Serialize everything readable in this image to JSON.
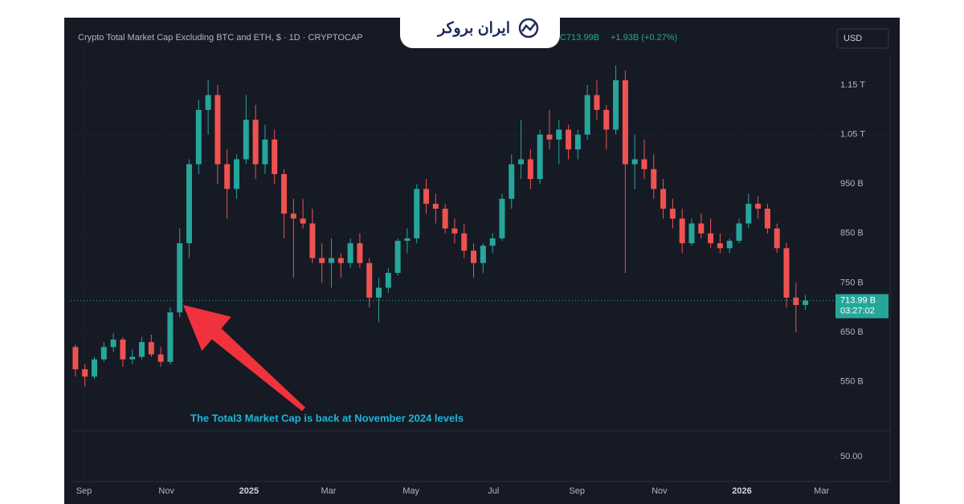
{
  "brand": "ایران بروکر",
  "chart_data": {
    "type": "candlestick",
    "title": "Crypto Total Market Cap Excluding BTC and ETH, $ · 1D · CRYPTOCAP",
    "last_quote": "C713.99B",
    "change": "+1.93B (+0.27%)",
    "currency": "USD",
    "countdown": "03:27:02",
    "annotation": "The Total3 Market Cap is back at November 2024 levels",
    "up_color": "#26a69a",
    "down_color": "#ef5350",
    "grid": true,
    "categories": [
      null,
      null,
      null,
      null,
      null,
      null,
      null,
      null,
      null,
      null,
      null,
      null,
      null,
      null,
      null,
      null,
      null,
      null,
      null,
      null,
      null,
      null,
      null,
      null,
      null,
      null,
      null,
      null,
      null,
      null,
      null,
      null,
      null,
      null,
      null,
      null,
      null,
      null,
      null,
      null,
      null,
      null,
      null,
      null,
      null,
      null,
      null,
      null,
      null,
      null,
      null,
      null,
      null,
      null,
      null,
      null,
      null,
      null,
      null,
      null,
      null,
      null,
      null,
      null,
      null,
      null,
      null,
      null,
      null,
      null,
      null,
      null,
      null,
      null,
      null,
      null,
      null,
      null
    ],
    "open": [
      620,
      575,
      560,
      595,
      620,
      635,
      595,
      600,
      630,
      605,
      590,
      690,
      830,
      990,
      1100,
      1130,
      990,
      940,
      1000,
      1080,
      990,
      1040,
      970,
      890,
      880,
      870,
      800,
      790,
      800,
      790,
      830,
      790,
      720,
      740,
      770,
      835,
      840,
      940,
      910,
      900,
      860,
      850,
      815,
      790,
      825,
      840,
      920,
      990,
      1000,
      960,
      1050,
      1040,
      1060,
      1020,
      1050,
      1130,
      1100,
      1060,
      1160,
      990,
      1000,
      980,
      940,
      900,
      880,
      830,
      870,
      850,
      830,
      820,
      835,
      870,
      910,
      900,
      860,
      820,
      720,
      705
    ],
    "high": [
      625,
      585,
      600,
      630,
      648,
      640,
      615,
      640,
      645,
      620,
      700,
      860,
      1000,
      1120,
      1160,
      1150,
      1020,
      1010,
      1130,
      1110,
      1070,
      1060,
      980,
      920,
      920,
      900,
      830,
      840,
      810,
      840,
      850,
      800,
      760,
      780,
      840,
      860,
      950,
      960,
      930,
      910,
      880,
      870,
      830,
      830,
      850,
      930,
      1010,
      1080,
      1020,
      1060,
      1100,
      1080,
      1070,
      1060,
      1150,
      1160,
      1110,
      1190,
      1180,
      1050,
      1040,
      1010,
      960,
      920,
      900,
      880,
      890,
      880,
      850,
      840,
      880,
      930,
      925,
      910,
      870,
      830,
      750,
      725
    ],
    "low": [
      560,
      540,
      555,
      590,
      610,
      580,
      585,
      595,
      600,
      580,
      585,
      680,
      800,
      970,
      1050,
      950,
      880,
      920,
      990,
      960,
      970,
      950,
      840,
      760,
      860,
      790,
      750,
      740,
      760,
      780,
      780,
      700,
      670,
      730,
      765,
      810,
      830,
      890,
      870,
      850,
      830,
      800,
      760,
      770,
      810,
      835,
      900,
      960,
      940,
      950,
      1020,
      990,
      1000,
      1000,
      1040,
      1080,
      1020,
      1050,
      770,
      940,
      960,
      920,
      880,
      860,
      810,
      825,
      840,
      820,
      810,
      810,
      830,
      860,
      880,
      850,
      810,
      700,
      650,
      695
    ],
    "close": [
      575,
      560,
      595,
      620,
      635,
      595,
      600,
      630,
      605,
      590,
      690,
      830,
      990,
      1100,
      1130,
      990,
      940,
      1000,
      1080,
      990,
      1040,
      970,
      890,
      880,
      870,
      800,
      790,
      800,
      790,
      830,
      790,
      720,
      740,
      770,
      835,
      840,
      940,
      910,
      900,
      860,
      850,
      815,
      790,
      825,
      840,
      920,
      990,
      1000,
      960,
      1050,
      1040,
      1060,
      1020,
      1050,
      1130,
      1100,
      1060,
      1160,
      990,
      1000,
      980,
      940,
      900,
      880,
      830,
      870,
      850,
      830,
      820,
      835,
      870,
      910,
      900,
      860,
      820,
      720,
      705,
      714
    ],
    "last_price": {
      "value": 713.99,
      "label": "713.99 B"
    },
    "xlim": [
      -0.5,
      80
    ],
    "xticks": [
      {
        "value": 0.9,
        "label": "Sep"
      },
      {
        "value": 9.6,
        "label": "Nov"
      },
      {
        "value": 18.3,
        "label": "2025"
      },
      {
        "value": 26.7,
        "label": "Mar"
      },
      {
        "value": 35.4,
        "label": "May"
      },
      {
        "value": 44.1,
        "label": "Jul"
      },
      {
        "value": 52.9,
        "label": "Sep"
      },
      {
        "value": 61.6,
        "label": "Nov"
      },
      {
        "value": 70.3,
        "label": "2026"
      },
      {
        "value": 78.7,
        "label": "Mar"
      }
    ],
    "ylim": [
      450,
      1225
    ],
    "yticks": [
      {
        "value": 550,
        "label": "550 B"
      },
      {
        "value": 650,
        "label": "650 B"
      },
      {
        "value": 750,
        "label": "750 B"
      },
      {
        "value": 850,
        "label": "850 B"
      },
      {
        "value": 950,
        "label": "950 B"
      },
      {
        "value": 1050,
        "label": "1.05 T"
      },
      {
        "value": 1150,
        "label": "1.15 T"
      }
    ],
    "indicator_yticks": [
      {
        "value": 50,
        "label": "50.00"
      }
    ]
  }
}
